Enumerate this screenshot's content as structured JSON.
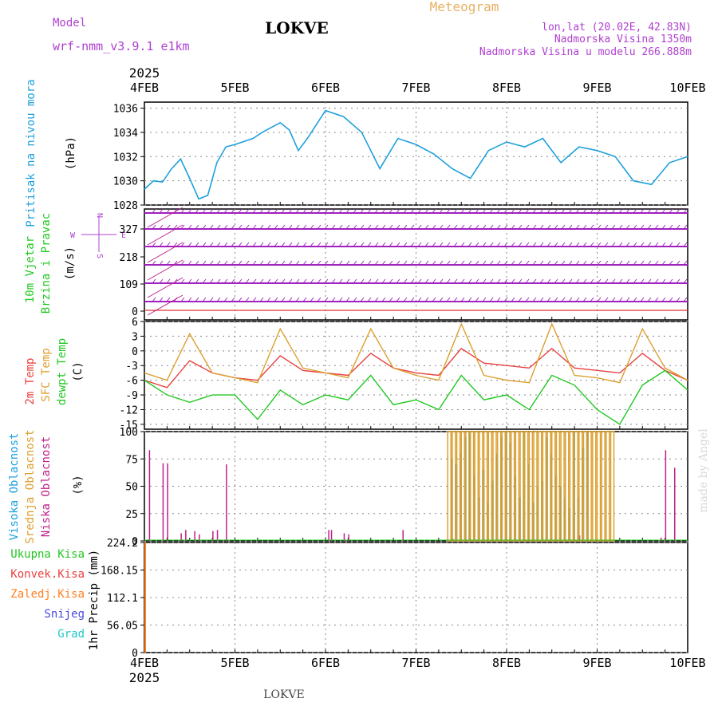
{
  "header": {
    "model_label": "Model",
    "model_name": "wrf-nmm_v3.9.1  e1km",
    "station": "LOKVE",
    "title": "Meteogram",
    "lonlat": "lon,lat (20.02E, 42.83N)",
    "elevation": "Nadmorska Visina 1350m",
    "model_elevation": "Nadmorska Visina u modelu 266.888m",
    "year": "2025",
    "footer_station": "LOKVE",
    "credit": "made by Angel"
  },
  "x_axis": {
    "dates": [
      "4FEB",
      "5FEB",
      "6FEB",
      "7FEB",
      "8FEB",
      "9FEB",
      "10FEB"
    ],
    "year": "2025",
    "days_span": 6
  },
  "panels": {
    "pressure": {
      "label": "Pritisak na nivou mora",
      "unit": "(hPa)",
      "ticks": [
        "1028",
        "1030",
        "1032",
        "1034",
        "1036"
      ]
    },
    "wind": {
      "label1": "10m Vjetar",
      "label2": "Brzina i Pravac",
      "unit": "(m/s)",
      "ticks": [
        "0",
        "109",
        "218",
        "327"
      ],
      "compass": {
        "n": "N",
        "w": "W",
        "e": "E",
        "s": "S"
      }
    },
    "temp": {
      "label1": "2m Temp",
      "label2": "SFC Temp",
      "label3": "dewpt Temp",
      "unit": "(C)",
      "ticks": [
        "-15",
        "-12",
        "-9",
        "-6",
        "-3",
        "0",
        "3",
        "6"
      ]
    },
    "cloud": {
      "label1": "Visoka Oblacnost",
      "label2": "Srednja Oblacnost",
      "label3": "Niska Oblacnost",
      "unit": "(%)",
      "ticks": [
        "0",
        "25",
        "50",
        "75",
        "100"
      ]
    },
    "precip": {
      "labels": [
        "Ukupna Kisa",
        "Konvek.Kisa",
        "Zaledj.Kisa",
        "Snijeg",
        "Grad"
      ],
      "unit": "1hr Precip (mm)",
      "ticks": [
        "0",
        "56.05",
        "112.1",
        "168.15",
        "224.2"
      ]
    }
  },
  "colors": {
    "pressure": "#1ea0dc",
    "t2m": "#e84040",
    "tsfc": "#dca030",
    "dewpt": "#22c822",
    "wind": "#a020c0",
    "wind_red": "#e03030",
    "high_cloud": "#1ea0dc",
    "mid_cloud": "#dca030",
    "low_cloud": "#c0208a",
    "ukupna": "#22c822",
    "konvek": "#e84040",
    "zaledj": "#ff7f20",
    "snijeg": "#4848e0",
    "grad": "#20c8c8",
    "purple_text": "#b040d0",
    "orange_text": "#e8b060",
    "wind_label": "#22c822",
    "pressure_label": "#1ea0dc"
  },
  "chart_data": [
    {
      "type": "line",
      "panel": "pressure",
      "ylabel": "Pritisak na nivou mora (hPa)",
      "ylim": [
        1028,
        1036.5
      ],
      "x_days": [
        0,
        0.1,
        0.2,
        0.3,
        0.4,
        0.5,
        0.6,
        0.7,
        0.8,
        0.9,
        1.0,
        1.2,
        1.3,
        1.5,
        1.6,
        1.7,
        1.8,
        2.0,
        2.2,
        2.4,
        2.6,
        2.8,
        3.0,
        3.2,
        3.4,
        3.6,
        3.8,
        4.0,
        4.2,
        4.4,
        4.6,
        4.8,
        5.0,
        5.2,
        5.4,
        5.6,
        5.8,
        6.0
      ],
      "series": [
        {
          "name": "Pritisak na nivou mora",
          "values": [
            1029.3,
            1030.0,
            1029.9,
            1031.0,
            1031.8,
            1030.2,
            1028.5,
            1028.8,
            1031.5,
            1032.8,
            1033.0,
            1033.5,
            1034.0,
            1034.8,
            1034.2,
            1032.5,
            1033.5,
            1035.8,
            1035.3,
            1034.0,
            1031.0,
            1033.5,
            1033.0,
            1032.2,
            1031.0,
            1030.2,
            1032.5,
            1033.2,
            1032.8,
            1033.5,
            1031.5,
            1032.8,
            1032.5,
            1032.0,
            1030.0,
            1029.7,
            1031.5,
            1032.0
          ]
        }
      ]
    },
    {
      "type": "line",
      "panel": "temperature",
      "ylabel": "(C)",
      "ylim": [
        -16,
        6
      ],
      "x_days": [
        0,
        0.25,
        0.5,
        0.75,
        1.0,
        1.25,
        1.5,
        1.75,
        2.0,
        2.25,
        2.5,
        2.75,
        3.0,
        3.25,
        3.5,
        3.75,
        4.0,
        4.25,
        4.5,
        4.75,
        5.0,
        5.25,
        5.5,
        5.75,
        6.0
      ],
      "series": [
        {
          "name": "2m Temp",
          "values": [
            -6,
            -7.5,
            -2,
            -4.5,
            -5.5,
            -6,
            -1,
            -4,
            -4.5,
            -5,
            -0.5,
            -3.5,
            -4.5,
            -5,
            0.5,
            -2.5,
            -3,
            -3.5,
            0.5,
            -3.5,
            -4,
            -4.5,
            -0.5,
            -4,
            -6
          ]
        },
        {
          "name": "SFC Temp",
          "values": [
            -4.5,
            -6,
            3.5,
            -4.5,
            -5.5,
            -6.5,
            4.5,
            -3.5,
            -4.5,
            -5.5,
            4.5,
            -3.5,
            -5,
            -6,
            5.5,
            -5,
            -6,
            -6.5,
            5.5,
            -5,
            -5.5,
            -6.5,
            4.5,
            -3.5,
            -6
          ]
        },
        {
          "name": "dewpt Temp",
          "values": [
            -6,
            -9,
            -10.5,
            -9,
            -9,
            -14,
            -8,
            -11,
            -9,
            -10,
            -5,
            -11,
            -10,
            -12,
            -5,
            -10,
            -9,
            -12,
            -5,
            -7,
            -12,
            -15,
            -7,
            -4,
            -8
          ]
        }
      ]
    },
    {
      "type": "bar",
      "panel": "cloud",
      "ylabel": "(%)",
      "ylim": [
        0,
        100
      ],
      "series": [
        {
          "name": "Niska Oblacnost",
          "x_days": [
            0.05,
            0.2,
            0.25,
            0.4,
            0.45,
            0.55,
            0.6,
            0.75,
            0.8,
            0.9,
            2.03,
            2.06,
            2.2,
            2.25,
            2.85,
            3.4,
            4.8,
            5.7,
            5.75,
            5.85
          ],
          "values": [
            83,
            71,
            71,
            7,
            10,
            9,
            6,
            9,
            10,
            70,
            10,
            10,
            7,
            6,
            10,
            2,
            5,
            3,
            83,
            67
          ]
        },
        {
          "name": "Visoka Oblacnost",
          "x_days": [
            3.38,
            3.43,
            3.48,
            3.53,
            3.58,
            3.63,
            3.68,
            3.73,
            3.78,
            3.83,
            3.88,
            3.93,
            3.98,
            4.03,
            4.08,
            4.13,
            4.18,
            4.23,
            4.28,
            4.33,
            4.38,
            4.43,
            4.48,
            4.53,
            4.58,
            4.63,
            4.68,
            4.73,
            4.78,
            4.83,
            4.88
          ],
          "values": [
            75,
            70,
            80,
            95,
            100,
            60,
            40,
            65,
            35,
            55,
            80,
            95,
            100,
            90,
            60,
            40,
            100,
            70,
            35,
            50,
            55,
            95,
            80,
            60,
            50,
            40,
            30,
            100,
            40,
            85,
            100
          ]
        },
        {
          "name": "Srednja Oblacnost",
          "x_days": [
            3.35,
            3.4,
            3.45,
            3.5,
            3.55,
            3.6,
            3.65,
            3.7,
            3.75,
            3.8,
            3.85,
            3.9,
            3.95,
            4.0,
            4.05,
            4.1,
            4.15,
            4.2,
            4.25,
            4.3,
            4.35,
            4.4,
            4.45,
            4.5,
            4.55,
            4.6,
            4.65,
            4.7,
            4.75,
            4.8,
            4.85,
            4.9,
            4.95,
            5.0,
            5.05,
            5.1,
            5.15
          ],
          "values": [
            100,
            100,
            100,
            100,
            100,
            100,
            100,
            100,
            100,
            100,
            100,
            100,
            100,
            100,
            100,
            100,
            100,
            100,
            100,
            100,
            100,
            100,
            100,
            100,
            100,
            100,
            100,
            100,
            100,
            100,
            100,
            100,
            100,
            100,
            100,
            100,
            100
          ]
        }
      ]
    },
    {
      "type": "bar",
      "panel": "precip",
      "ylabel": "1hr Precip (mm)",
      "ylim": [
        0,
        224.2
      ],
      "series": [
        {
          "name": "Ukupna Kisa",
          "x_days": [
            0.0
          ],
          "values": [
            224.2
          ]
        }
      ]
    }
  ]
}
